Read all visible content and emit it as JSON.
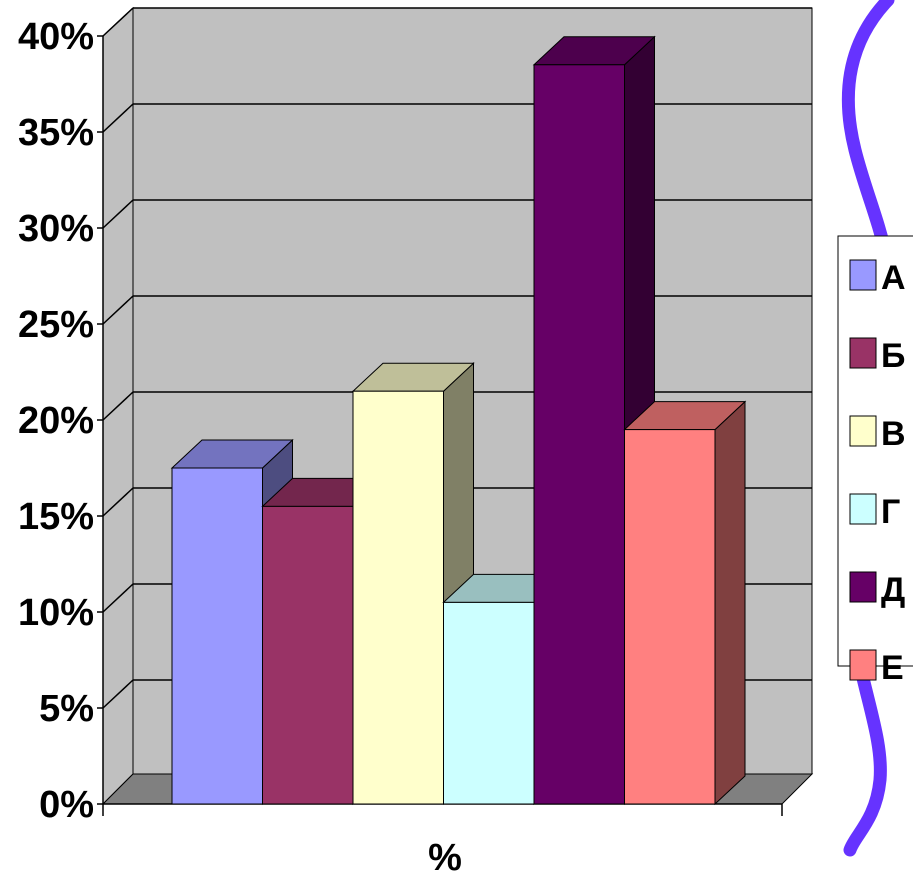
{
  "chart_data": {
    "type": "bar",
    "title": "",
    "xlabel": "%",
    "ylabel": "",
    "ylim": [
      0,
      40
    ],
    "y_ticks": [
      "0%",
      "5%",
      "10%",
      "15%",
      "20%",
      "25%",
      "30%",
      "35%",
      "40%"
    ],
    "grid": true,
    "legend_position": "right",
    "categories": [
      "%"
    ],
    "series": [
      {
        "name": "А",
        "values": [
          17.5
        ],
        "color": "#9999FF"
      },
      {
        "name": "Б",
        "values": [
          15.5
        ],
        "color": "#993366"
      },
      {
        "name": "В",
        "values": [
          21.5
        ],
        "color": "#FFFFCC"
      },
      {
        "name": "Г",
        "values": [
          10.5
        ],
        "color": "#CCFFFF"
      },
      {
        "name": "Д",
        "values": [
          38.5
        ],
        "color": "#660066"
      },
      {
        "name": "Е",
        "values": [
          19.5
        ],
        "color": "#FF8080"
      }
    ],
    "colors": {
      "wall": "#C0C0C0",
      "floor": "#808080",
      "decorative_line": "#6633FF"
    }
  }
}
